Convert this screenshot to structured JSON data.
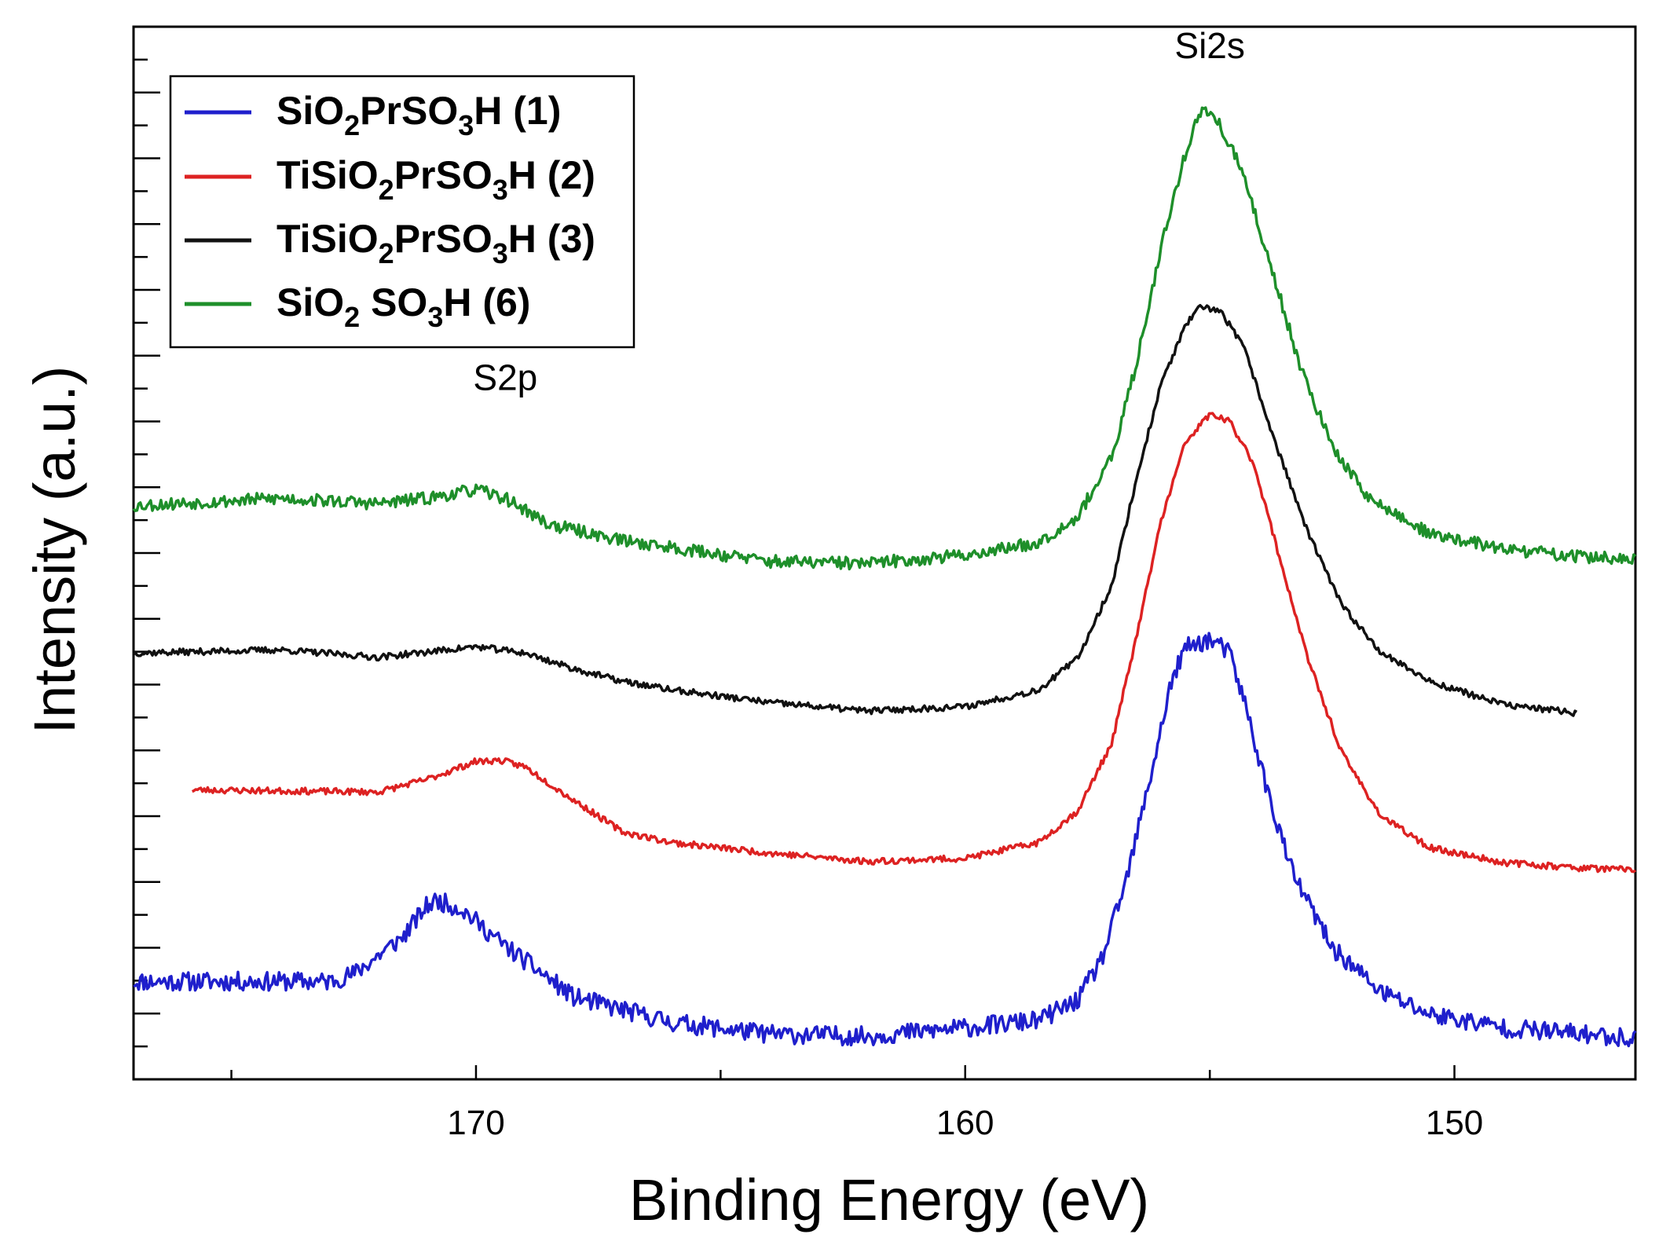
{
  "chart_data": {
    "type": "line",
    "title": "",
    "xlabel": "Binding Energy (eV)",
    "ylabel": "Intensity (a.u.)",
    "xlim": [
      177,
      146.3
    ],
    "ylim": [
      0,
      100
    ],
    "x_reversed": true,
    "y_ticklabels_shown": false,
    "xticks": [
      170,
      160,
      150
    ],
    "xtick_labels": [
      "170",
      "160",
      "150"
    ],
    "legend_location": "top-left",
    "annotations": [
      {
        "text": "Si2s",
        "x": 155.0,
        "y": 97.0
      },
      {
        "text": "S2p",
        "x": 169.4,
        "y": 65.5
      }
    ],
    "series": [
      {
        "name": "SiO2PrSO3H (1)",
        "legend": {
          "a": "SiO",
          "s1": "2",
          "b": "PrSO",
          "s2": "3",
          "c": "H (1)"
        },
        "color": "#1f1fcc",
        "x_range": [
          177,
          146.3
        ],
        "noise": 0.9,
        "seed": 11,
        "points": [
          [
            177,
            9.3
          ],
          [
            173,
            9.3
          ],
          [
            172.5,
            10
          ],
          [
            171.5,
            13.5
          ],
          [
            171,
            16.5
          ],
          [
            170.8,
            17
          ],
          [
            170.3,
            16.2
          ],
          [
            169.5,
            13
          ],
          [
            168,
            7.8
          ],
          [
            166,
            5.4
          ],
          [
            164,
            4.3
          ],
          [
            162,
            4.1
          ],
          [
            160,
            4.9
          ],
          [
            158.5,
            5.6
          ],
          [
            157.7,
            7.5
          ],
          [
            157.2,
            11.5
          ],
          [
            156.7,
            19
          ],
          [
            156.2,
            29
          ],
          [
            155.8,
            37.5
          ],
          [
            155.5,
            41
          ],
          [
            155.0,
            41.8
          ],
          [
            154.6,
            40.5
          ],
          [
            154.3,
            36
          ],
          [
            153.8,
            27
          ],
          [
            153.3,
            19.5
          ],
          [
            152.5,
            12.5
          ],
          [
            151.5,
            8.3
          ],
          [
            150.5,
            6.2
          ],
          [
            149,
            4.9
          ],
          [
            146.3,
            3.9
          ]
        ]
      },
      {
        "name": "TiSiO2PrSO3H (2)",
        "legend": {
          "a": "TiSiO",
          "s1": "2",
          "b": "PrSO",
          "s2": "3",
          "c": "H (2)"
        },
        "color": "#dd2222",
        "x_range": [
          175.8,
          146.3
        ],
        "noise": 0.3,
        "seed": 23,
        "points": [
          [
            175.8,
            27.5
          ],
          [
            172,
            27.3
          ],
          [
            171,
            28.5
          ],
          [
            170,
            30.2
          ],
          [
            169.5,
            30.3
          ],
          [
            169,
            29.7
          ],
          [
            168,
            26.5
          ],
          [
            167,
            23.5
          ],
          [
            166,
            22.5
          ],
          [
            164,
            21.5
          ],
          [
            162,
            20.7
          ],
          [
            160,
            21
          ],
          [
            158.5,
            22.5
          ],
          [
            157.7,
            25.5
          ],
          [
            157,
            32
          ],
          [
            156.5,
            42
          ],
          [
            156,
            53
          ],
          [
            155.5,
            60.5
          ],
          [
            155.0,
            63.2
          ],
          [
            154.6,
            62.5
          ],
          [
            154.1,
            58.5
          ],
          [
            153.6,
            50
          ],
          [
            153,
            40
          ],
          [
            152.3,
            31
          ],
          [
            151.5,
            25
          ],
          [
            150.5,
            22
          ],
          [
            149,
            20.6
          ],
          [
            147.5,
            20.1
          ],
          [
            146.3,
            19.9
          ]
        ]
      },
      {
        "name": "TiSiO2PrSO3H (3)",
        "legend": {
          "a": "TiSiO",
          "s1": "2",
          "b": "PrSO",
          "s2": "3",
          "c": "H (3)"
        },
        "color": "#111111",
        "x_range": [
          177,
          147.5
        ],
        "noise": 0.3,
        "seed": 37,
        "points": [
          [
            177,
            40.5
          ],
          [
            174,
            40.8
          ],
          [
            172,
            40.1
          ],
          [
            171,
            40.6
          ],
          [
            170,
            41.1
          ],
          [
            169,
            40.5
          ],
          [
            168,
            39
          ],
          [
            167,
            37.8
          ],
          [
            166,
            37
          ],
          [
            164,
            35.8
          ],
          [
            162,
            35
          ],
          [
            160,
            35.4
          ],
          [
            158.5,
            37
          ],
          [
            157.7,
            40
          ],
          [
            157,
            47
          ],
          [
            156.5,
            57
          ],
          [
            156,
            66
          ],
          [
            155.5,
            71.6
          ],
          [
            155.2,
            73.3
          ],
          [
            154.8,
            73.1
          ],
          [
            154.3,
            69.5
          ],
          [
            153.7,
            61
          ],
          [
            153,
            52
          ],
          [
            152.3,
            45
          ],
          [
            151.5,
            40.6
          ],
          [
            150.5,
            37.8
          ],
          [
            149,
            35.6
          ],
          [
            147.5,
            34.8
          ]
        ]
      },
      {
        "name": "SiO2 SO3H (6)",
        "legend": {
          "a": "SiO",
          "s1": "2",
          "b": " SO",
          "s2": "3",
          "c": "H (6)"
        },
        "color": "#1e8f2a",
        "x_range": [
          177,
          146.3
        ],
        "noise": 0.6,
        "seed": 53,
        "points": [
          [
            177,
            54.5
          ],
          [
            174,
            55.2
          ],
          [
            172,
            54.7
          ],
          [
            171,
            55.2
          ],
          [
            170,
            56
          ],
          [
            169.4,
            55.2
          ],
          [
            168.5,
            52.7
          ],
          [
            167,
            51.2
          ],
          [
            165.5,
            50.2
          ],
          [
            164,
            49.2
          ],
          [
            162,
            49
          ],
          [
            160,
            49.8
          ],
          [
            158.5,
            51
          ],
          [
            157.7,
            53.5
          ],
          [
            157,
            59
          ],
          [
            156.5,
            68
          ],
          [
            156,
            79
          ],
          [
            155.5,
            88
          ],
          [
            155.2,
            92
          ],
          [
            154.9,
            91.5
          ],
          [
            154.4,
            87
          ],
          [
            153.8,
            78
          ],
          [
            153.2,
            68.5
          ],
          [
            152.5,
            60
          ],
          [
            151.7,
            55
          ],
          [
            150.5,
            51.8
          ],
          [
            149,
            50.4
          ],
          [
            147.5,
            49.7
          ],
          [
            146.3,
            49.3
          ]
        ]
      }
    ]
  }
}
